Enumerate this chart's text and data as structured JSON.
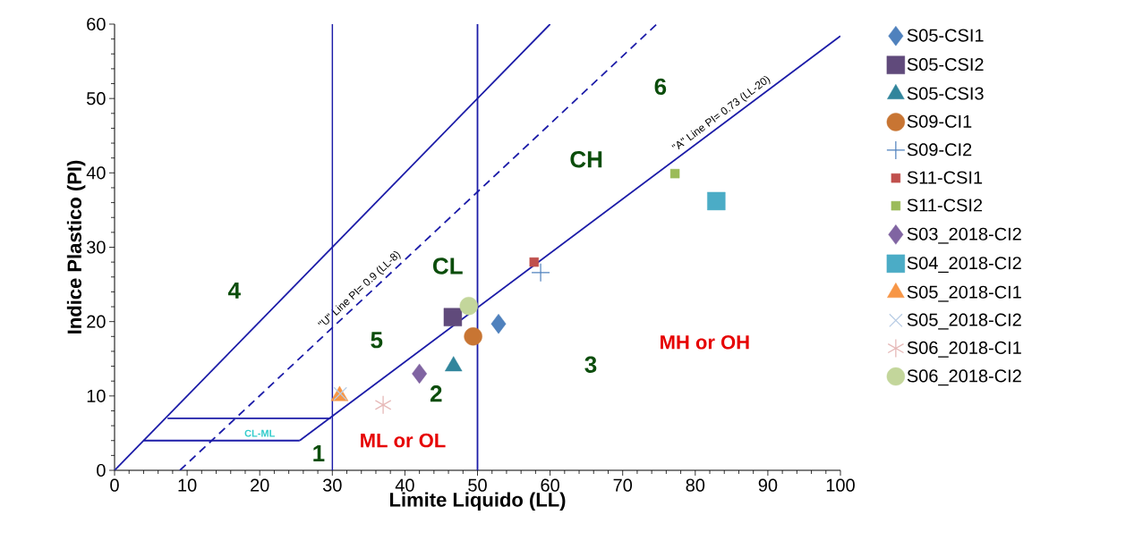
{
  "chart_data": {
    "type": "scatter",
    "xlabel": "Limite Liquido (LL)",
    "ylabel": "Indice Plastico (PI)",
    "xlim": [
      0,
      100
    ],
    "ylim": [
      0,
      60
    ],
    "xticks": [
      0,
      10,
      20,
      30,
      40,
      50,
      60,
      70,
      80,
      90,
      100
    ],
    "yticks": [
      0,
      10,
      20,
      30,
      40,
      50,
      60
    ],
    "legend": "right",
    "series": [
      {
        "name": "S05-CSI1",
        "color": "#4f81bd",
        "marker": "diamond",
        "x": [
          52.9
        ],
        "values": [
          19.7
        ]
      },
      {
        "name": "S05-CSI2",
        "color": "#604a7b",
        "marker": "square",
        "x": [
          46.6
        ],
        "values": [
          20.6
        ]
      },
      {
        "name": "S05-CSI3",
        "color": "#31859c",
        "marker": "triangle",
        "x": [
          46.7
        ],
        "values": [
          14
        ]
      },
      {
        "name": "S09-CI1",
        "color": "#c87533",
        "marker": "circle",
        "x": [
          49.4
        ],
        "values": [
          18
        ]
      },
      {
        "name": "S09-CI2",
        "color": "#4f81bd",
        "marker": "cross",
        "x": [
          58.7
        ],
        "values": [
          26.6
        ]
      },
      {
        "name": "S11-CSI1",
        "color": "#c0504d",
        "marker": "square",
        "x": [
          57.8
        ],
        "values": [
          28
        ]
      },
      {
        "name": "S11-CSI2",
        "color": "#9bbb59",
        "marker": "square",
        "x": [
          77.2
        ],
        "values": [
          39.9
        ]
      },
      {
        "name": "S03_2018-CI2",
        "color": "#8064a2",
        "marker": "diamond",
        "x": [
          42
        ],
        "values": [
          13
        ]
      },
      {
        "name": "S04_2018-CI2",
        "color": "#4bacc6",
        "marker": "square",
        "x": [
          82.9
        ],
        "values": [
          36.2
        ]
      },
      {
        "name": "S05_2018-CI1",
        "color": "#f79646",
        "marker": "triangle",
        "x": [
          31
        ],
        "values": [
          10
        ]
      },
      {
        "name": "S05_2018-CI2",
        "color": "#b9cde5",
        "marker": "cross",
        "x": [
          31.1
        ],
        "values": [
          10.3
        ]
      },
      {
        "name": "S06_2018-CI1",
        "color": "#e6b9b8",
        "marker": "cross",
        "x": [
          37
        ],
        "values": [
          8.8
        ]
      },
      {
        "name": "S06_2018-CI2",
        "color": "#c3d69b",
        "marker": "circle",
        "x": [
          48.8
        ],
        "values": [
          22.1
        ]
      },
      {
        "type": "line",
        "color": "#1c1ca8",
        "x": [
          0,
          60
        ],
        "values": [
          0,
          60
        ]
      },
      {
        "type": "line",
        "name": "\"U\" Line PI= 0.9 (LL-8)",
        "color": "#1c1ca8",
        "line_style": "dashed",
        "x": [
          9,
          74.7
        ],
        "values": [
          0,
          60
        ]
      },
      {
        "type": "line",
        "name": "\"A\" Line PI= 0.73 (LL-20)",
        "color": "#1c1ca8",
        "x": [
          25.5,
          100
        ],
        "values": [
          4,
          58.4
        ]
      },
      {
        "type": "line",
        "color": "#1c1ca8",
        "x": [
          4,
          25.5
        ],
        "values": [
          4,
          4
        ]
      },
      {
        "type": "line",
        "color": "#1c1ca8",
        "x": [
          7.3,
          29.8
        ],
        "values": [
          7,
          7
        ]
      }
    ],
    "ref_lines": [
      {
        "axis": "x",
        "value": 30,
        "color": "#1c1ca8"
      },
      {
        "axis": "x",
        "value": 50,
        "color": "#1c1ca8"
      }
    ],
    "annotations": [
      "1",
      "2",
      "3",
      "4",
      "5",
      "6",
      "CL",
      "CH",
      "ML or OL",
      "MH or OH",
      "CL-ML"
    ]
  }
}
